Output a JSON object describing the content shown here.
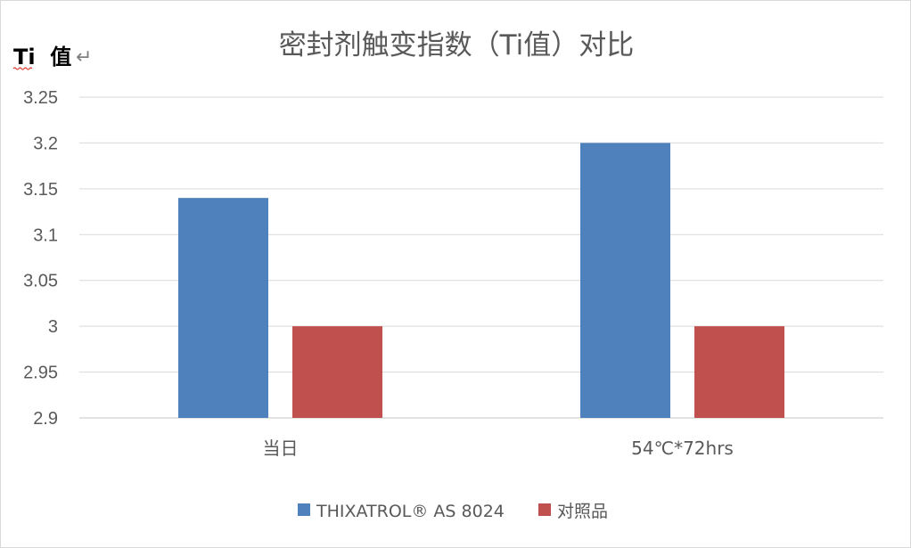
{
  "chart_data": {
    "type": "bar",
    "title": "密封剂触变指数（Ti值）对比",
    "ylabel": "Ti  值",
    "xlabel": "",
    "categories": [
      "当日",
      "54℃*72hrs"
    ],
    "series": [
      {
        "name": "THIXATROL® AS 8024",
        "color": "#4f81bd",
        "values": [
          3.14,
          3.2
        ]
      },
      {
        "name": "对照品",
        "color": "#c0504d",
        "values": [
          3.0,
          3.0
        ]
      }
    ],
    "ylim": [
      2.9,
      3.25
    ],
    "yticks": [
      2.9,
      2.95,
      3.0,
      3.05,
      3.1,
      3.15,
      3.2,
      3.25
    ],
    "ytick_labels": [
      "2.9",
      "2.95",
      "3",
      "3.05",
      "3.1",
      "3.15",
      "3.2",
      "3.25"
    ],
    "grid": true,
    "legend_position": "bottom"
  }
}
